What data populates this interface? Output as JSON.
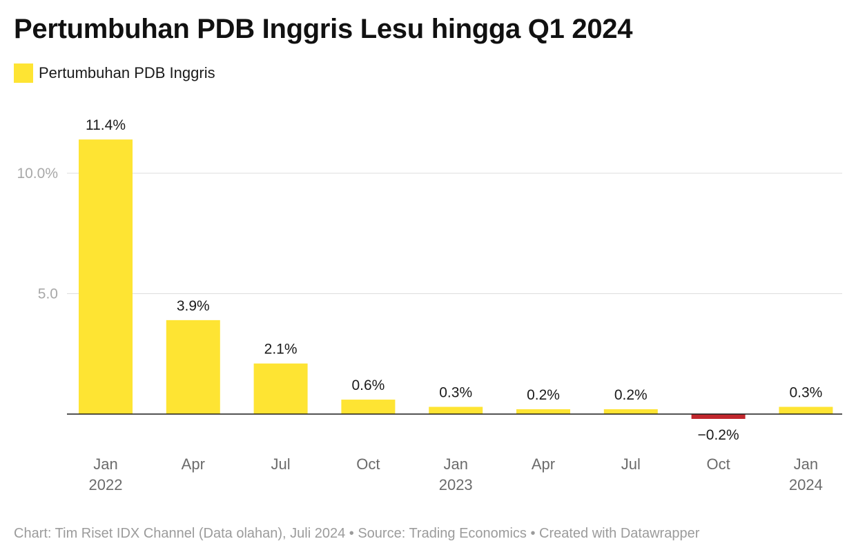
{
  "chart_data": {
    "type": "bar",
    "title": "Pertumbuhan PDB Inggris Lesu hingga Q1 2024",
    "legend": [
      {
        "label": "Pertumbuhan PDB Inggris",
        "color": "#fee433"
      }
    ],
    "categories": [
      "Jan\n2022",
      "Apr",
      "Jul",
      "Oct",
      "Jan\n2023",
      "Apr",
      "Jul",
      "Oct",
      "Jan\n2024"
    ],
    "values": [
      11.4,
      3.9,
      2.1,
      0.6,
      0.3,
      0.2,
      0.2,
      -0.2,
      0.3
    ],
    "data_labels": [
      "11.4%",
      "3.9%",
      "2.1%",
      "0.6%",
      "0.3%",
      "0.2%",
      "0.2%",
      "−0.2%",
      "0.3%"
    ],
    "yticks": [
      {
        "value": 5,
        "label": "5.0"
      },
      {
        "value": 10,
        "label": "10.0%"
      }
    ],
    "ylim": [
      -1,
      13
    ],
    "grid": true,
    "colors": {
      "positive": "#fee433",
      "negative": "#c1272d"
    }
  },
  "footer": "Chart: Tim Riset IDX Channel (Data olahan), Juli 2024 • Source: Trading Economics • Created with Datawrapper"
}
